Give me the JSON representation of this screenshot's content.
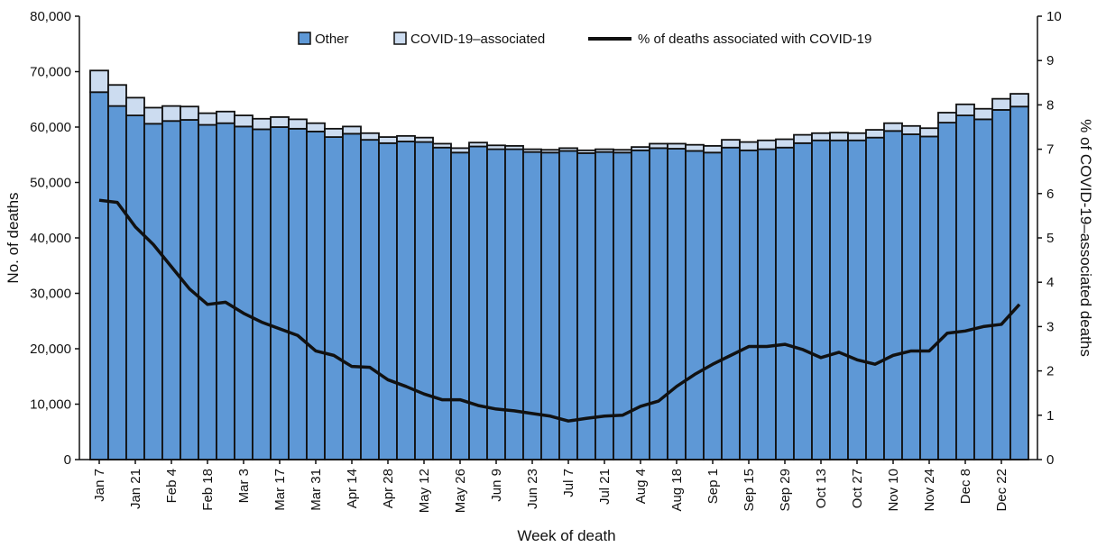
{
  "chart_data": {
    "type": "bar",
    "stacked": true,
    "xlabel": "Week of death",
    "ylabel": "No. of deaths",
    "y2label": "% of COVID-19–associated deaths",
    "ylim": [
      0,
      80000
    ],
    "y2lim": [
      0,
      10
    ],
    "yticks": [
      "0",
      "10,000",
      "20,000",
      "30,000",
      "40,000",
      "50,000",
      "60,000",
      "70,000",
      "80,000"
    ],
    "y2ticks": [
      "0",
      "1",
      "2",
      "3",
      "4",
      "5",
      "6",
      "7",
      "8",
      "9",
      "10"
    ],
    "xtick_labels": [
      "Jan 7",
      "Jan 21",
      "Feb 4",
      "Feb 18",
      "Mar 3",
      "Mar 17",
      "Mar 31",
      "Apr 14",
      "Apr 28",
      "May 12",
      "May 26",
      "Jun 9",
      "Jun 23",
      "Jul 7",
      "Jul 21",
      "Aug 4",
      "Aug 18",
      "Sep 1",
      "Sep 15",
      "Sep 29",
      "Oct 13",
      "Oct 27",
      "Nov 10",
      "Nov 24",
      "Dec 8",
      "Dec 22"
    ],
    "grid": false,
    "legend_position": "top-center",
    "colors": {
      "other": "#5E98D6",
      "covid": "#CCDCF0",
      "line": "#111111"
    },
    "series": [
      {
        "name": "Other",
        "axis": "left",
        "values": [
          66300,
          63800,
          62100,
          60600,
          61100,
          61300,
          60400,
          60700,
          60100,
          59600,
          60000,
          59700,
          59200,
          58200,
          58800,
          57700,
          57100,
          57400,
          57300,
          56300,
          55400,
          56500,
          56000,
          56000,
          55500,
          55400,
          55700,
          55300,
          55500,
          55400,
          55800,
          56200,
          56100,
          55700,
          55400,
          56300,
          55800,
          56000,
          56300,
          57100,
          57600,
          57600,
          57600,
          58100,
          59300,
          58700,
          58300,
          60800,
          62100,
          61400,
          63100,
          63700
        ]
      },
      {
        "name": "COVID-19–associated",
        "axis": "left",
        "values": [
          3900,
          3800,
          3200,
          2900,
          2700,
          2400,
          2100,
          2100,
          2000,
          1900,
          1800,
          1700,
          1500,
          1500,
          1300,
          1200,
          1100,
          1000,
          800,
          700,
          800,
          700,
          700,
          600,
          500,
          500,
          500,
          500,
          500,
          500,
          600,
          800,
          900,
          1100,
          1200,
          1400,
          1500,
          1600,
          1500,
          1500,
          1300,
          1400,
          1300,
          1400,
          1400,
          1500,
          1500,
          1800,
          2000,
          1900,
          2000,
          2300
        ]
      },
      {
        "name": "% of deaths associated with COVID-19",
        "axis": "right",
        "type": "line",
        "values": [
          5.85,
          5.8,
          5.25,
          4.85,
          4.35,
          3.85,
          3.5,
          3.55,
          3.3,
          3.1,
          2.95,
          2.8,
          2.45,
          2.35,
          2.1,
          2.08,
          1.8,
          1.65,
          1.48,
          1.35,
          1.35,
          1.22,
          1.14,
          1.1,
          1.04,
          0.98,
          0.87,
          0.93,
          0.98,
          1.0,
          1.2,
          1.32,
          1.65,
          1.92,
          2.15,
          2.35,
          2.55,
          2.55,
          2.6,
          2.48,
          2.3,
          2.42,
          2.25,
          2.15,
          2.35,
          2.45,
          2.45,
          2.85,
          2.9,
          3.0,
          3.05,
          3.5
        ]
      }
    ]
  }
}
